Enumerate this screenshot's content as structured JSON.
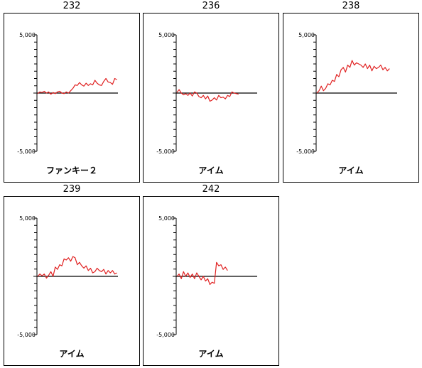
{
  "chart_data": [
    {
      "type": "line",
      "title": "232",
      "xlabel": "ファンキー２",
      "ylim": [
        -5000,
        5000
      ],
      "ytick_labels": {
        "top": "5,000",
        "bottom": "-5,000"
      },
      "series": [
        {
          "values": [
            -50,
            100,
            50,
            150,
            0,
            100,
            -100,
            50,
            -50,
            100,
            150,
            0,
            -50,
            100,
            0,
            200,
            400,
            700,
            650,
            900,
            700,
            600,
            850,
            650,
            800,
            700,
            1100,
            850,
            700,
            650,
            1000,
            1250,
            950,
            900,
            750,
            1250,
            1150
          ]
        }
      ]
    },
    {
      "type": "line",
      "title": "236",
      "xlabel": "アイム",
      "ylim": [
        -5000,
        5000
      ],
      "ytick_labels": {
        "top": "5,000",
        "bottom": "-5,000"
      },
      "series": [
        {
          "values": [
            50,
            300,
            0,
            -150,
            -50,
            -200,
            0,
            -250,
            100,
            0,
            -300,
            -400,
            -200,
            -500,
            -250,
            -700,
            -600,
            -400,
            -600,
            -200,
            -400,
            -350,
            -500,
            -200,
            -300,
            100,
            0,
            -50,
            -100
          ]
        }
      ]
    },
    {
      "type": "line",
      "title": "238",
      "xlabel": "アイム",
      "ylim": [
        -5000,
        5000
      ],
      "ytick_labels": {
        "top": "5,000",
        "bottom": "-5,000"
      },
      "series": [
        {
          "values": [
            0,
            200,
            600,
            200,
            400,
            800,
            700,
            1100,
            1000,
            1600,
            1400,
            2000,
            2200,
            1800,
            2400,
            2200,
            2800,
            2400,
            2600,
            2500,
            2400,
            2200,
            2500,
            2100,
            2400,
            1900,
            2300,
            2100,
            2200,
            2400,
            2000,
            2200,
            1900,
            2100
          ]
        }
      ]
    },
    {
      "type": "line",
      "title": "239",
      "xlabel": "アイム",
      "ylim": [
        -5000,
        5000
      ],
      "ytick_labels": {
        "top": "5,000",
        "bottom": "-5,000"
      },
      "series": [
        {
          "values": [
            0,
            200,
            50,
            200,
            -150,
            100,
            400,
            0,
            800,
            600,
            1000,
            900,
            1500,
            1400,
            1600,
            1300,
            1700,
            1600,
            1000,
            1200,
            900,
            700,
            900,
            500,
            700,
            300,
            400,
            700,
            500,
            400,
            600,
            200,
            500,
            300,
            500,
            200,
            300
          ]
        }
      ]
    },
    {
      "type": "line",
      "title": "242",
      "xlabel": "アイム",
      "ylim": [
        -5000,
        5000
      ],
      "ytick_labels": {
        "top": "5,000",
        "bottom": "-5,000"
      },
      "series": [
        {
          "values": [
            0,
            200,
            -200,
            400,
            0,
            300,
            -100,
            200,
            -200,
            300,
            0,
            -300,
            0,
            -400,
            -200,
            -700,
            -500,
            -600,
            1200,
            900,
            1000,
            600,
            800,
            500
          ]
        }
      ]
    }
  ],
  "colors": {
    "line": "#e02020",
    "axis": "#000000"
  }
}
